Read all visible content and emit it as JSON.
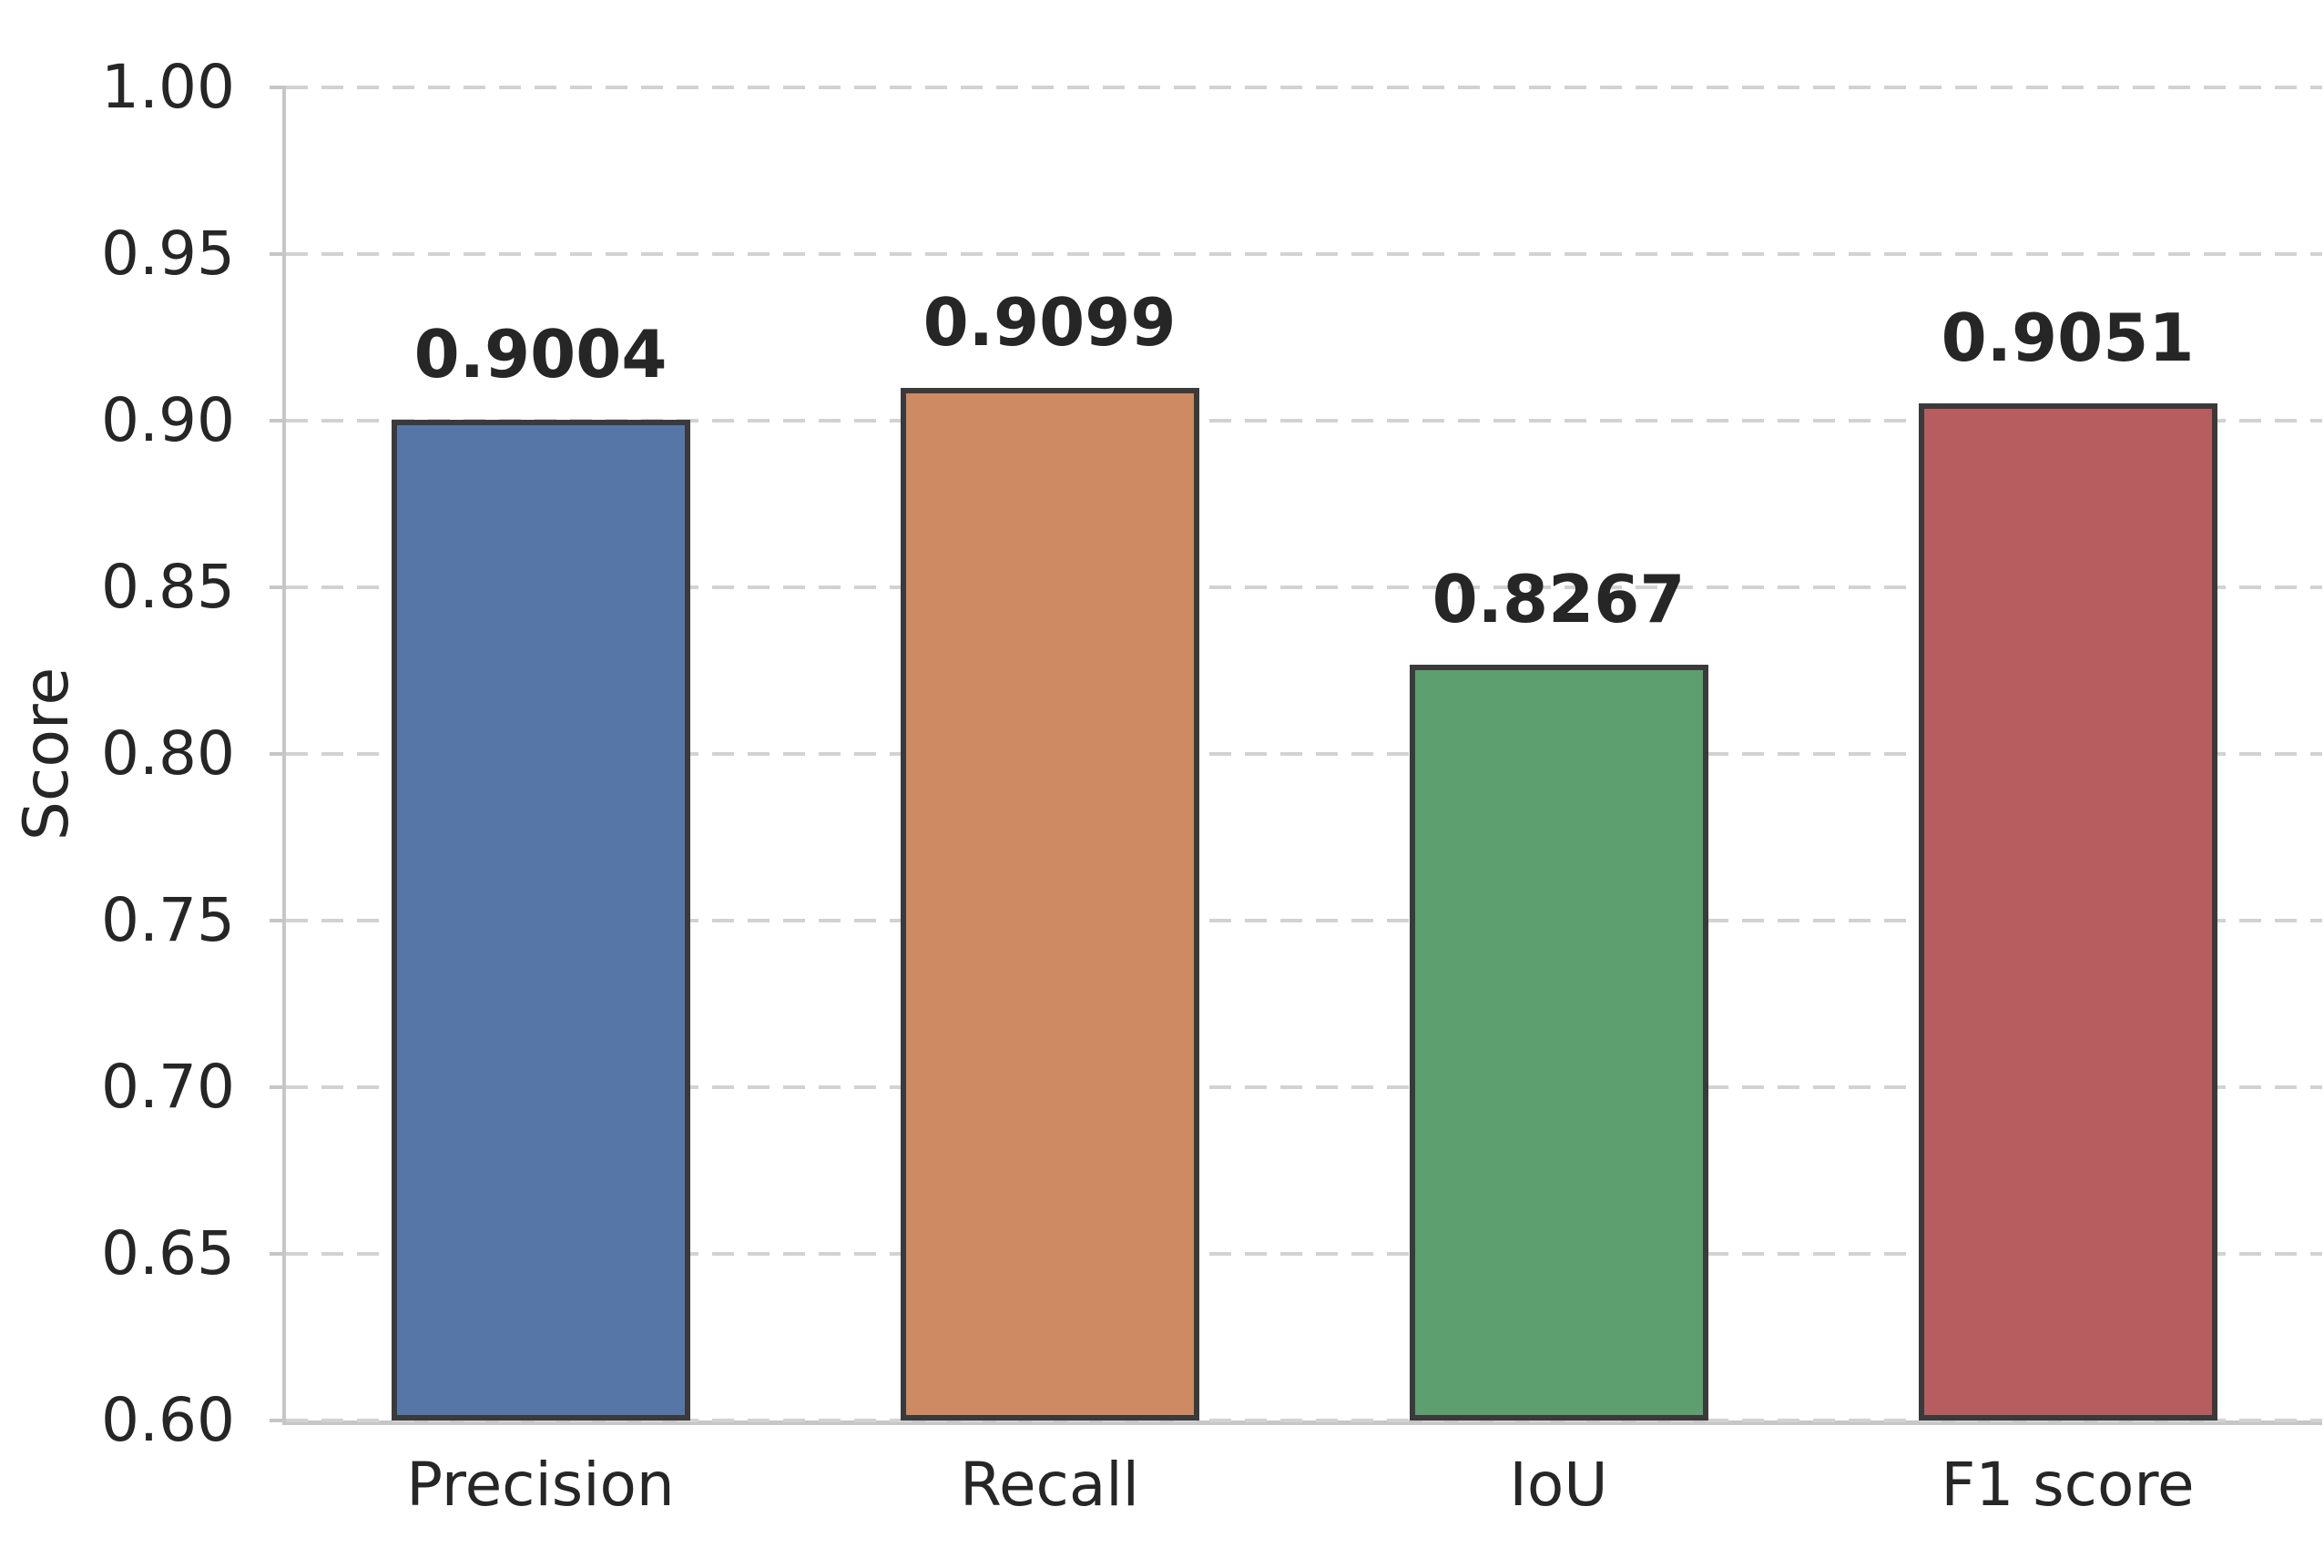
{
  "chart_data": {
    "type": "bar",
    "title": "",
    "xlabel": "",
    "ylabel": "Score",
    "categories": [
      "Precision",
      "Recall",
      "IoU",
      "F1 score"
    ],
    "values": [
      0.9004,
      0.9099,
      0.8267,
      0.9051
    ],
    "bar_labels": [
      "0.9004",
      "0.9099",
      "0.8267",
      "0.9051"
    ],
    "ylim": [
      0.6,
      1.0
    ],
    "yticks": [
      "0.60",
      "0.65",
      "0.70",
      "0.75",
      "0.80",
      "0.85",
      "0.90",
      "0.95",
      "1.00"
    ],
    "grid": "horizontal-dashed",
    "legend": "none",
    "colors": {
      "bars": [
        "#5776a8",
        "#cd8a63",
        "#5d9f6f",
        "#b75d5f"
      ],
      "bar_edge": "#3a3a3a",
      "grid": "#d2d2d2",
      "spine": "#c6c6c6",
      "text": "#262626"
    }
  }
}
